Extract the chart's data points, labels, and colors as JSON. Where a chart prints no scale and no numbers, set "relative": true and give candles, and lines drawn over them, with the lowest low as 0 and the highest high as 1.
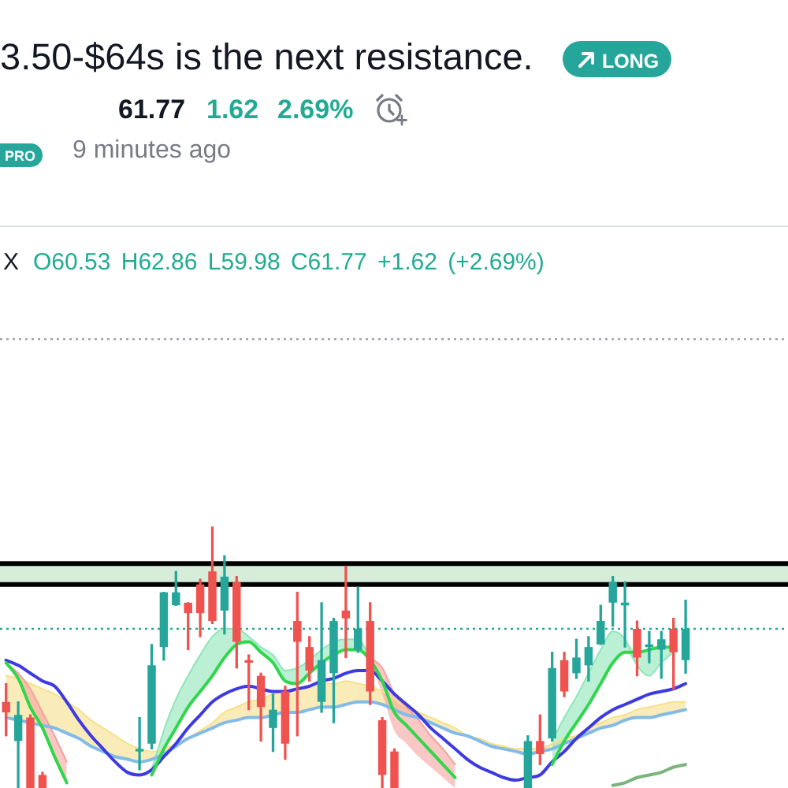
{
  "chart_data": {
    "type": "candlestick",
    "title": "3.50-$64s is the next resistance.",
    "annotations": [
      "LONG",
      "61.77",
      "1.62",
      "2.69%",
      "PRO",
      "9 minutes ago",
      "X",
      "O60.53 H62.86 L59.98 C61.77 +1.62 (+2.69%)"
    ],
    "relative": true,
    "tick_labels": false,
    "categories": [
      null,
      null,
      null,
      null,
      null,
      null,
      null,
      null,
      null,
      null,
      null,
      null,
      null,
      null,
      null,
      null,
      null,
      null,
      null,
      null,
      null,
      null,
      null,
      null,
      null,
      null,
      null,
      null,
      null,
      null,
      null,
      null,
      null,
      null,
      null,
      null,
      null,
      null,
      null,
      null,
      null,
      null,
      null,
      null,
      null,
      null,
      null,
      null,
      null,
      null,
      null,
      null,
      null,
      null,
      null,
      null,
      null
    ],
    "ohlc": [
      [
        0.33,
        0.4,
        0.2,
        0.29
      ],
      [
        0.18,
        0.33,
        0.0,
        0.28
      ],
      [
        0.27,
        0.28,
        0.0,
        0.0
      ],
      [
        0.05,
        0.06,
        0.0,
        0.0
      ],
      null,
      null,
      null,
      null,
      null,
      null,
      null,
      [
        0.14,
        0.27,
        0.07,
        0.15
      ],
      [
        0.17,
        0.55,
        0.15,
        0.47
      ],
      [
        0.54,
        0.75,
        0.49,
        0.75
      ],
      [
        0.7,
        0.83,
        0.7,
        0.75
      ],
      [
        0.71,
        0.71,
        0.53,
        0.67
      ],
      [
        0.78,
        0.8,
        0.58,
        0.67
      ],
      [
        0.83,
        1.0,
        0.63,
        0.64
      ],
      [
        0.68,
        0.89,
        0.59,
        0.81
      ],
      [
        0.79,
        0.81,
        0.46,
        0.56
      ],
      [
        0.49,
        0.51,
        0.3,
        0.48
      ],
      [
        0.43,
        0.44,
        0.18,
        0.31
      ],
      [
        0.23,
        0.36,
        0.14,
        0.3
      ],
      [
        0.37,
        0.39,
        0.11,
        0.17
      ],
      [
        0.64,
        0.75,
        0.2,
        0.56
      ],
      [
        0.54,
        0.58,
        0.41,
        0.45
      ],
      [
        0.33,
        0.71,
        0.29,
        0.49
      ],
      [
        0.44,
        0.65,
        0.25,
        0.64
      ],
      [
        0.68,
        0.85,
        0.5,
        0.65
      ],
      [
        0.53,
        0.77,
        0.52,
        0.61
      ],
      [
        0.64,
        0.71,
        0.32,
        0.37
      ],
      [
        0.26,
        0.27,
        0.0,
        0.05
      ],
      [
        0.14,
        0.15,
        0.0,
        0.0
      ],
      null,
      null,
      null,
      null,
      null,
      null,
      null,
      null,
      null,
      null,
      [
        0.0,
        0.2,
        0.0,
        0.18
      ],
      [
        0.18,
        0.28,
        0.09,
        0.13
      ],
      [
        0.19,
        0.52,
        0.18,
        0.46
      ],
      [
        0.49,
        0.52,
        0.35,
        0.37
      ],
      [
        0.44,
        0.57,
        0.42,
        0.5
      ],
      [
        0.47,
        0.58,
        0.41,
        0.54
      ],
      [
        0.55,
        0.7,
        0.55,
        0.64
      ],
      [
        0.71,
        0.81,
        0.62,
        0.79
      ],
      [
        0.7,
        0.79,
        0.54,
        0.71
      ],
      [
        0.61,
        0.64,
        0.43,
        0.5
      ],
      [
        0.54,
        0.6,
        0.48,
        0.55
      ],
      [
        0.53,
        0.6,
        0.42,
        0.57
      ],
      [
        0.61,
        0.65,
        0.38,
        0.52
      ],
      [
        0.49,
        0.72,
        0.44,
        0.61
      ]
    ],
    "colors": [
      "#ef5350",
      "#26a69a",
      "#ef5350",
      "#ef5350",
      null,
      null,
      null,
      null,
      null,
      null,
      null,
      "#26a69a",
      "#26a69a",
      "#26a69a",
      "#26a69a",
      "#ef5350",
      "#ef5350",
      "#ef5350",
      "#26a69a",
      "#ef5350",
      "#ef5350",
      "#ef5350",
      "#26a69a",
      "#ef5350",
      "#ef5350",
      "#ef5350",
      "#26a69a",
      "#26a69a",
      "#ef5350",
      "#26a69a",
      "#ef5350",
      "#ef5350",
      "#ef5350",
      null,
      null,
      null,
      null,
      null,
      null,
      null,
      null,
      null,
      null,
      "#26a69a",
      "#ef5350",
      "#26a69a",
      "#ef5350",
      "#26a69a",
      "#26a69a",
      "#26a69a",
      "#26a69a",
      "#26a69a",
      "#ef5350",
      "#26a69a",
      "#26a69a",
      "#ef5350",
      "#26a69a"
    ],
    "series": [
      {
        "type": "line",
        "color": "#f6e08a",
        "values": [
          0.43,
          0.42,
          0.4,
          0.38,
          0.36,
          0.33,
          0.3,
          0.26,
          0.23,
          0.2,
          0.17,
          0.15,
          0.14,
          0.15,
          0.17,
          0.19,
          0.22,
          0.25,
          0.29,
          0.31,
          0.33,
          0.34,
          0.36,
          0.37,
          0.38,
          0.39,
          0.4,
          0.4,
          0.41,
          0.4,
          0.39,
          0.37,
          0.34,
          0.31,
          0.29,
          0.27,
          0.25,
          0.23,
          0.2,
          0.19,
          0.17,
          0.16,
          0.15,
          0.15,
          0.15,
          0.17,
          0.19,
          0.2,
          0.23,
          0.25,
          0.27,
          0.28,
          0.3,
          0.31,
          0.32,
          0.33,
          0.33
        ],
        "lower": [
          0.27,
          0.26,
          0.25,
          0.24,
          0.23,
          0.21,
          0.19,
          0.16,
          0.14,
          0.12,
          0.11,
          0.1,
          0.11,
          0.13,
          0.16,
          0.19,
          0.21,
          0.23,
          0.25,
          0.26,
          0.27,
          0.27,
          0.28,
          0.29,
          0.29,
          0.3,
          0.31,
          0.31,
          0.32,
          0.33,
          0.33,
          0.32,
          0.3,
          0.28,
          0.27,
          0.25,
          0.23,
          0.21,
          0.2,
          0.18,
          0.16,
          0.15,
          0.14,
          0.13,
          0.14,
          0.15,
          0.17,
          0.19,
          0.21,
          0.23,
          0.24,
          0.26,
          0.27,
          0.27,
          0.28,
          0.29,
          0.3
        ],
        "upper": [
          0.43,
          0.42,
          0.4,
          0.38,
          0.36,
          0.33,
          0.3,
          0.26,
          0.23,
          0.2,
          0.17,
          0.15,
          0.14,
          0.15,
          0.17,
          0.19,
          0.22,
          0.25,
          0.29,
          0.31,
          0.33,
          0.34,
          0.36,
          0.37,
          0.38,
          0.39,
          0.4,
          0.4,
          0.41,
          0.4,
          0.39,
          0.37,
          0.34,
          0.31,
          0.29,
          0.27,
          0.25,
          0.23,
          0.2,
          0.19,
          0.17,
          0.16,
          0.15,
          0.15,
          0.15,
          0.17,
          0.19,
          0.2,
          0.23,
          0.25,
          0.27,
          0.28,
          0.3,
          0.31,
          0.32,
          0.33,
          0.33
        ]
      },
      {
        "type": "line",
        "color": "#8ee6b8",
        "values": [
          null,
          null,
          null,
          null,
          null,
          null,
          null,
          null,
          null,
          null,
          null,
          null,
          0.07,
          0.22,
          0.34,
          0.43,
          0.51,
          0.58,
          0.61,
          0.61,
          0.58,
          0.54,
          0.51,
          0.45,
          0.46,
          0.49,
          0.53,
          0.56,
          0.57,
          0.57,
          0.5,
          null,
          null,
          null,
          null,
          null,
          null,
          null,
          null,
          null,
          null,
          null,
          null,
          null,
          null,
          0.18,
          0.27,
          0.35,
          0.44,
          0.53,
          0.6,
          0.57,
          0.47,
          0.43,
          0.48,
          0.52,
          null
        ],
        "lower": [
          null,
          null,
          null,
          null,
          null,
          null,
          null,
          null,
          null,
          null,
          null,
          null,
          0.05,
          0.15,
          0.23,
          0.31,
          0.37,
          0.43,
          0.5,
          0.55,
          0.56,
          0.52,
          0.48,
          0.41,
          0.4,
          0.44,
          0.48,
          0.51,
          0.53,
          0.53,
          0.49,
          null,
          null,
          null,
          null,
          null,
          null,
          null,
          null,
          null,
          null,
          null,
          null,
          null,
          null,
          0.09,
          0.18,
          0.25,
          0.32,
          0.4,
          0.48,
          0.52,
          0.47,
          0.43,
          0.48,
          0.52,
          null
        ],
        "upper": [
          null,
          null,
          null,
          null,
          null,
          null,
          null,
          null,
          null,
          null,
          null,
          null,
          0.07,
          0.22,
          0.34,
          0.43,
          0.51,
          0.58,
          0.61,
          0.61,
          0.58,
          0.54,
          0.51,
          0.45,
          0.46,
          0.49,
          0.53,
          0.56,
          0.57,
          0.57,
          0.5,
          null,
          null,
          null,
          null,
          null,
          null,
          null,
          null,
          null,
          null,
          null,
          null,
          null,
          null,
          0.18,
          0.27,
          0.35,
          0.44,
          0.53,
          0.6,
          0.57,
          0.52,
          0.53,
          0.54,
          0.54,
          null
        ]
      },
      {
        "type": "line",
        "color": "#f5a29c",
        "values": [
          0.48,
          0.44,
          0.38,
          0.29,
          0.2,
          0.1,
          null,
          null,
          null,
          null,
          null,
          null,
          null,
          null,
          null,
          null,
          null,
          null,
          null,
          null,
          null,
          null,
          null,
          null,
          null,
          null,
          null,
          null,
          null,
          null,
          0.5,
          0.46,
          0.36,
          0.31,
          0.26,
          0.2,
          0.15,
          0.09,
          null,
          null,
          null,
          null,
          null,
          null,
          null,
          null,
          null,
          null,
          null,
          null,
          null,
          null,
          null,
          null,
          null,
          null,
          null
        ],
        "lower": [
          0.48,
          0.42,
          0.31,
          0.23,
          0.12,
          0.02,
          null,
          null,
          null,
          null,
          null,
          null,
          null,
          null,
          null,
          null,
          null,
          null,
          null,
          null,
          null,
          null,
          null,
          null,
          null,
          null,
          null,
          null,
          null,
          null,
          0.49,
          0.36,
          0.22,
          0.17,
          0.12,
          0.08,
          0.04,
          0.0,
          null,
          null,
          null,
          null,
          null,
          null,
          null,
          null,
          null,
          null,
          null,
          null,
          null,
          null,
          null,
          null,
          null,
          null,
          null
        ],
        "upper": [
          0.48,
          0.44,
          0.38,
          0.29,
          0.2,
          0.1,
          null,
          null,
          null,
          null,
          null,
          null,
          null,
          null,
          null,
          null,
          null,
          null,
          null,
          null,
          null,
          null,
          null,
          null,
          null,
          null,
          null,
          null,
          null,
          null,
          0.5,
          0.46,
          0.36,
          0.31,
          0.26,
          0.2,
          0.15,
          0.09,
          null,
          null,
          null,
          null,
          null,
          null,
          null,
          null,
          null,
          null,
          null,
          null,
          null,
          null,
          null,
          null,
          null,
          null,
          null
        ]
      },
      {
        "type": "line",
        "color": "#82bbe9",
        "values": [
          0.27,
          0.26,
          0.25,
          0.24,
          0.23,
          0.21,
          0.19,
          0.16,
          0.14,
          0.12,
          0.11,
          0.1,
          0.11,
          0.13,
          0.16,
          0.19,
          0.21,
          0.23,
          0.25,
          0.26,
          0.27,
          0.27,
          0.28,
          0.29,
          0.29,
          0.3,
          0.31,
          0.31,
          0.32,
          0.33,
          0.33,
          0.32,
          0.3,
          0.28,
          0.27,
          0.25,
          0.23,
          0.21,
          0.2,
          0.18,
          0.16,
          0.15,
          0.14,
          0.13,
          0.14,
          0.15,
          0.17,
          0.19,
          0.21,
          0.23,
          0.24,
          0.26,
          0.27,
          0.27,
          0.28,
          0.29,
          0.3
        ]
      },
      {
        "type": "line",
        "color": "#3d3ae2",
        "values": [
          0.49,
          0.47,
          0.44,
          0.41,
          0.39,
          0.33,
          0.26,
          0.2,
          0.15,
          0.1,
          0.06,
          0.05,
          0.07,
          0.12,
          0.17,
          0.23,
          0.28,
          0.33,
          0.36,
          0.38,
          0.39,
          0.38,
          0.37,
          0.37,
          0.38,
          0.39,
          0.41,
          0.42,
          0.44,
          0.45,
          0.45,
          0.41,
          0.36,
          0.32,
          0.28,
          0.23,
          0.19,
          0.15,
          0.11,
          0.08,
          0.06,
          0.04,
          0.03,
          0.04,
          0.05,
          0.1,
          0.14,
          0.19,
          0.23,
          0.27,
          0.3,
          0.32,
          0.34,
          0.36,
          0.37,
          0.38,
          0.4
        ]
      },
      {
        "type": "line",
        "color": "#31d64c",
        "values": [
          0.48,
          0.42,
          0.31,
          0.23,
          0.12,
          0.02,
          null,
          null,
          null,
          null,
          null,
          null,
          0.05,
          0.15,
          0.23,
          0.31,
          0.37,
          0.43,
          0.5,
          0.55,
          0.56,
          0.52,
          0.48,
          0.41,
          0.4,
          0.44,
          0.48,
          0.51,
          0.53,
          0.53,
          0.49,
          0.41,
          0.29,
          0.24,
          0.19,
          0.14,
          0.09,
          0.04,
          null,
          null,
          null,
          null,
          null,
          null,
          null,
          0.09,
          0.18,
          0.25,
          0.32,
          0.4,
          0.48,
          0.52,
          0.52,
          0.53,
          0.54,
          0.54,
          null
        ]
      },
      {
        "type": "line",
        "color": "#7bb47c",
        "values": [
          null,
          null,
          null,
          null,
          null,
          null,
          null,
          null,
          null,
          null,
          null,
          null,
          null,
          null,
          null,
          null,
          null,
          null,
          null,
          null,
          null,
          null,
          null,
          null,
          null,
          null,
          null,
          null,
          null,
          null,
          null,
          null,
          null,
          null,
          null,
          null,
          null,
          null,
          null,
          null,
          null,
          null,
          null,
          null,
          null,
          null,
          null,
          null,
          null,
          null,
          0.01,
          0.02,
          0.04,
          0.05,
          0.06,
          0.08,
          0.09
        ]
      }
    ],
    "ref_lines": [
      {
        "axis": "y",
        "value": 1.72,
        "line_style": "dotted",
        "color": "#9598a1"
      },
      {
        "axis": "y",
        "value": 0.86,
        "color": "#000000"
      },
      {
        "axis": "y",
        "value": 0.78,
        "color": "#000000"
      },
      {
        "axis": "y",
        "value": 0.61,
        "line_style": "dotted",
        "color": "#22ab94"
      }
    ],
    "bands": [
      {
        "axis": "y",
        "from": 0.78,
        "to": 0.86,
        "color": "#d6edd9"
      }
    ]
  }
}
